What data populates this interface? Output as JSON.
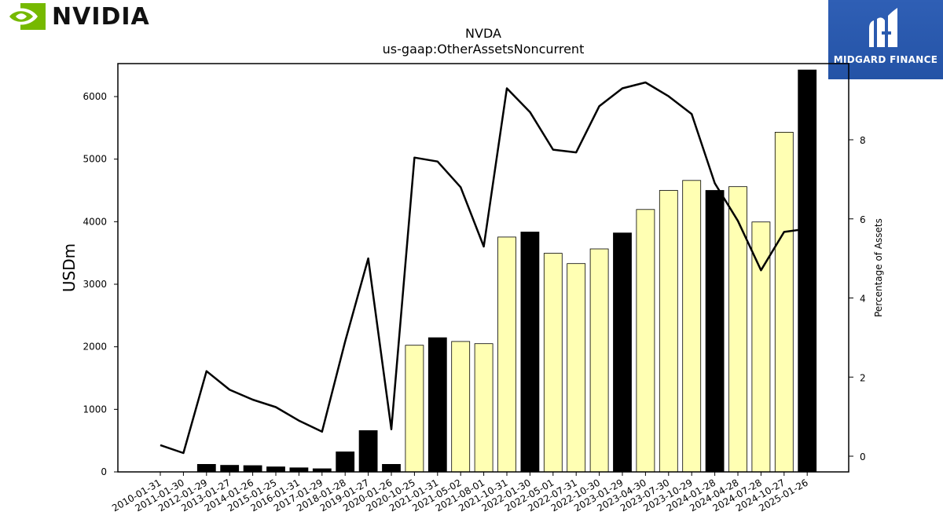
{
  "branding": {
    "left_logo_text": "NVIDIA",
    "right_logo_text": "MIDGARD FINANCE"
  },
  "colors": {
    "nvidia_green": "#76b900",
    "bar_annual": "#000000",
    "bar_quarter": "#ffffb3",
    "line": "#000000",
    "midgard_blue": "#2a5aae"
  },
  "chart_data": {
    "type": "bar",
    "title": "NVDA",
    "subtitle": "us-gaap:OtherAssetsNoncurrent",
    "ylabel": "USDm",
    "y2label": "Percentage of Assets",
    "ylim": [
      0,
      6500
    ],
    "y2lim": [
      -0.4,
      10.0
    ],
    "yticks": [
      0,
      1000,
      2000,
      3000,
      4000,
      5000,
      6000
    ],
    "y2ticks": [
      0,
      2,
      4,
      6,
      8
    ],
    "categories": [
      "2010-01-31",
      "2011-01-30",
      "2012-01-29",
      "2013-01-27",
      "2014-01-26",
      "2015-01-25",
      "2016-01-31",
      "2017-01-29",
      "2018-01-28",
      "2019-01-27",
      "2020-01-26",
      "2020-10-25",
      "2021-01-31",
      "2021-05-02",
      "2021-08-01",
      "2021-10-31",
      "2022-01-30",
      "2022-05-01",
      "2022-07-31",
      "2022-10-30",
      "2023-01-29",
      "2023-04-30",
      "2023-07-30",
      "2023-10-29",
      "2024-01-28",
      "2024-04-28",
      "2024-07-28",
      "2024-10-27",
      "2025-01-26"
    ],
    "series": [
      {
        "values": [
          0,
          0,
          120,
          105,
          100,
          80,
          65,
          50,
          320,
          660,
          120,
          2025,
          2145,
          2085,
          2050,
          3755,
          3835,
          3495,
          3330,
          3565,
          3820,
          4195,
          4500,
          4660,
          4500,
          4560,
          3995,
          5430,
          6425
        ],
        "kind": [
          "annual",
          "annual",
          "annual",
          "annual",
          "annual",
          "annual",
          "annual",
          "annual",
          "annual",
          "annual",
          "annual",
          "quarter",
          "annual",
          "quarter",
          "quarter",
          "quarter",
          "annual",
          "quarter",
          "quarter",
          "quarter",
          "annual",
          "quarter",
          "quarter",
          "quarter",
          "annual",
          "quarter",
          "quarter",
          "quarter",
          "annual"
        ]
      },
      {
        "axis": "right",
        "values": [
          0.28,
          0.08,
          2.15,
          1.68,
          1.43,
          1.24,
          0.9,
          0.62,
          2.9,
          5.0,
          0.68,
          7.55,
          7.45,
          6.8,
          5.3,
          9.3,
          8.7,
          7.75,
          7.68,
          8.85,
          9.3,
          9.45,
          9.1,
          8.65,
          6.9,
          5.95,
          4.7,
          5.67,
          5.75
        ]
      }
    ],
    "grid": false,
    "legend": "none"
  }
}
